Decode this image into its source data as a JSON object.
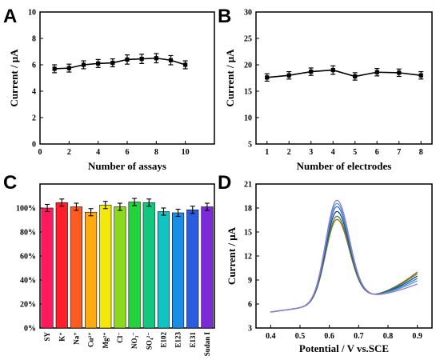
{
  "panels": [
    "A",
    "B",
    "C",
    "D"
  ],
  "chart_data": [
    {
      "id": "A",
      "type": "line",
      "xlabel": "Number of assays",
      "ylabel": "Current / μA",
      "xlim": [
        0,
        12
      ],
      "ylim": [
        0,
        10
      ],
      "xticks": [
        0,
        2,
        4,
        6,
        8,
        10
      ],
      "yticks": [
        0,
        2,
        4,
        6,
        8,
        10
      ],
      "x": [
        1,
        2,
        3,
        4,
        5,
        6,
        7,
        8,
        9,
        10
      ],
      "values": [
        5.7,
        5.75,
        6.0,
        6.1,
        6.15,
        6.4,
        6.45,
        6.5,
        6.35,
        6.0
      ],
      "errors": [
        0.3,
        0.3,
        0.3,
        0.3,
        0.3,
        0.35,
        0.35,
        0.35,
        0.35,
        0.3
      ],
      "color": "#000000"
    },
    {
      "id": "B",
      "type": "line",
      "xlabel": "Number of electrodes",
      "ylabel": "Current / μA",
      "xlim": [
        0.5,
        8.5
      ],
      "ylim": [
        5,
        30
      ],
      "xticks": [
        1,
        2,
        3,
        4,
        5,
        6,
        7,
        8
      ],
      "yticks": [
        5,
        10,
        15,
        20,
        25,
        30
      ],
      "x": [
        1,
        2,
        3,
        4,
        5,
        6,
        7,
        8
      ],
      "values": [
        17.6,
        18.0,
        18.7,
        19.0,
        17.8,
        18.6,
        18.5,
        18.0
      ],
      "errors": [
        0.7,
        0.7,
        0.7,
        0.8,
        0.7,
        0.7,
        0.7,
        0.7
      ],
      "color": "#000000"
    },
    {
      "id": "C",
      "type": "bar",
      "ylim": [
        0,
        120
      ],
      "yticks": [
        0,
        20,
        40,
        60,
        80,
        100
      ],
      "ytick_labels": [
        "0%",
        "20%",
        "40%",
        "60%",
        "80%",
        "100%"
      ],
      "categories": [
        "SY",
        "K⁺",
        "Na⁺",
        "Cu²⁺",
        "Mg²⁺",
        "Cl⁻",
        "NO₃⁻",
        "SO₄²⁻",
        "E102",
        "E123",
        "E131",
        "Sudan I"
      ],
      "values": [
        100,
        104.5,
        101,
        96.5,
        102.5,
        101,
        105,
        104.5,
        97,
        96,
        98.5,
        101
      ],
      "errors": [
        3,
        3,
        3,
        3,
        3,
        3,
        3,
        3,
        3,
        3,
        3,
        3
      ],
      "colors": [
        "#ff1a5e",
        "#ff1f2a",
        "#ff5a1f",
        "#ffaa0f",
        "#f2e80a",
        "#8cd81e",
        "#22d33c",
        "#12c87e",
        "#10c4c4",
        "#1a8ee6",
        "#2a5ce0",
        "#7c2ad8"
      ]
    },
    {
      "id": "D",
      "type": "line",
      "xlabel": "Potential / V vs.SCE",
      "ylabel": "Current / μA",
      "xlim": [
        0.35,
        0.95
      ],
      "ylim": [
        3,
        21
      ],
      "xticks": [
        0.4,
        0.5,
        0.6,
        0.7,
        0.8,
        0.9
      ],
      "yticks": [
        3,
        6,
        9,
        12,
        15,
        18,
        21
      ],
      "peak_x": 0.625,
      "x_range": [
        0.4,
        0.9
      ],
      "series": [
        {
          "color": "#b45a1e",
          "peak": 16.6,
          "end": 10.0
        },
        {
          "color": "#2a9a3a",
          "peak": 17.0,
          "end": 9.8
        },
        {
          "color": "#2c3c9c",
          "peak": 17.6,
          "end": 9.5
        },
        {
          "color": "#4a6ad0",
          "peak": 18.2,
          "end": 9.2
        },
        {
          "color": "#3ab0c8",
          "peak": 18.6,
          "end": 8.9
        },
        {
          "color": "#9a78c8",
          "peak": 19.0,
          "end": 8.5
        }
      ]
    }
  ]
}
